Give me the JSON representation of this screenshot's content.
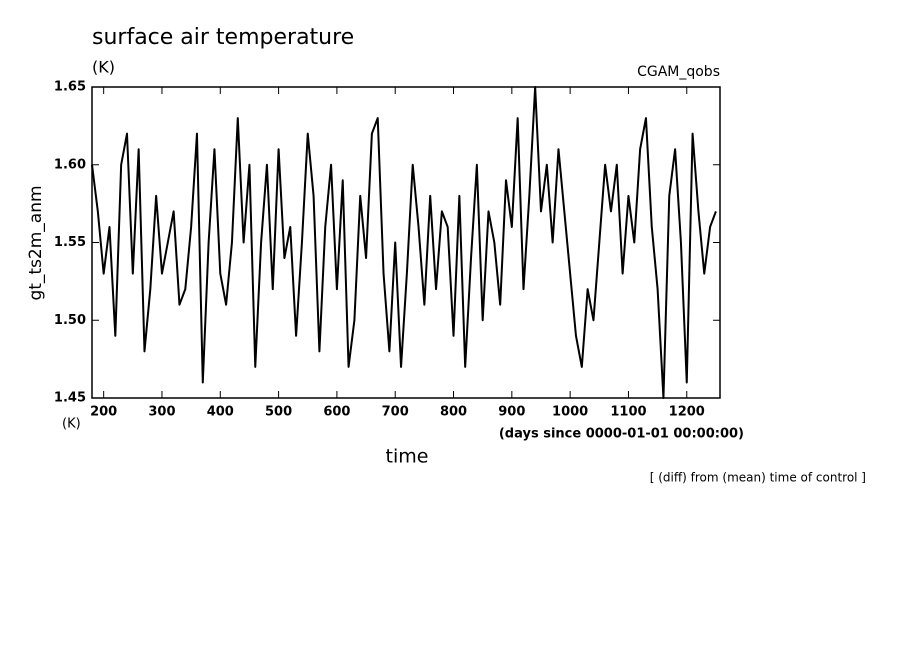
{
  "chart_data": {
    "type": "line",
    "title": "surface air temperature",
    "units": "(K)",
    "source": "CGAM_qobs",
    "ylabel": "gt_ts2m_anm",
    "ylabel_units": "(K)",
    "xlabel": "time",
    "xlabel_units": "(days since 0000-01-01 00:00:00)",
    "note": "[ (diff) from (mean) time of control ]",
    "color": "#000000",
    "xlim": [
      180,
      1257
    ],
    "ylim": [
      1.45,
      1.65
    ],
    "xticks": [
      200,
      300,
      400,
      500,
      600,
      700,
      800,
      900,
      1000,
      1100,
      1200
    ],
    "yticks": [
      1.45,
      {
        "value": 1.5,
        "label": "1.50"
      },
      1.55,
      {
        "value": 1.6,
        "label": "1.60"
      },
      1.65
    ],
    "x": [
      180,
      190,
      200,
      210,
      220,
      230,
      240,
      250,
      260,
      270,
      280,
      290,
      300,
      310,
      320,
      330,
      340,
      350,
      360,
      370,
      380,
      390,
      400,
      410,
      420,
      430,
      440,
      450,
      460,
      470,
      480,
      490,
      500,
      510,
      520,
      530,
      540,
      550,
      560,
      570,
      580,
      590,
      600,
      610,
      620,
      630,
      640,
      650,
      660,
      670,
      680,
      690,
      700,
      710,
      720,
      730,
      740,
      750,
      760,
      770,
      780,
      790,
      800,
      810,
      820,
      830,
      840,
      850,
      860,
      870,
      880,
      890,
      900,
      910,
      920,
      930,
      940,
      950,
      960,
      970,
      980,
      990,
      1000,
      1010,
      1020,
      1030,
      1040,
      1050,
      1060,
      1070,
      1080,
      1090,
      1100,
      1110,
      1120,
      1130,
      1140,
      1150,
      1160,
      1170,
      1180,
      1190,
      1200,
      1210,
      1220,
      1230,
      1240,
      1250
    ],
    "values": [
      1.6,
      1.57,
      1.53,
      1.56,
      1.49,
      1.6,
      1.62,
      1.53,
      1.61,
      1.48,
      1.52,
      1.58,
      1.53,
      1.55,
      1.57,
      1.51,
      1.52,
      1.56,
      1.62,
      1.46,
      1.55,
      1.61,
      1.53,
      1.51,
      1.55,
      1.63,
      1.55,
      1.6,
      1.47,
      1.55,
      1.6,
      1.52,
      1.61,
      1.54,
      1.56,
      1.49,
      1.55,
      1.62,
      1.58,
      1.48,
      1.56,
      1.6,
      1.52,
      1.59,
      1.47,
      1.5,
      1.58,
      1.54,
      1.62,
      1.63,
      1.53,
      1.48,
      1.55,
      1.47,
      1.53,
      1.6,
      1.56,
      1.51,
      1.58,
      1.52,
      1.57,
      1.56,
      1.49,
      1.58,
      1.47,
      1.54,
      1.6,
      1.5,
      1.57,
      1.55,
      1.51,
      1.59,
      1.56,
      1.63,
      1.52,
      1.58,
      1.65,
      1.57,
      1.6,
      1.55,
      1.61,
      1.57,
      1.53,
      1.49,
      1.47,
      1.52,
      1.5,
      1.55,
      1.6,
      1.57,
      1.6,
      1.53,
      1.58,
      1.55,
      1.61,
      1.63,
      1.56,
      1.52,
      1.45,
      1.58,
      1.61,
      1.55,
      1.46,
      1.62,
      1.57,
      1.53,
      1.56,
      1.57
    ]
  }
}
